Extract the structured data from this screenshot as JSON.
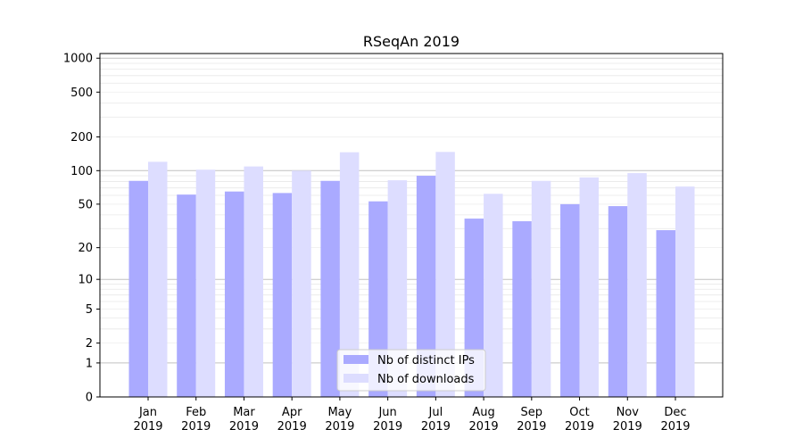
{
  "chart_data": {
    "type": "bar",
    "title": "RSeqAn 2019",
    "xlabel": "",
    "ylabel": "",
    "y_scale": "log(1+y)",
    "ylim": [
      0,
      1100
    ],
    "y_ticks": [
      0,
      1,
      2,
      5,
      10,
      20,
      50,
      100,
      200,
      500,
      1000
    ],
    "grid": "horizontal",
    "legend_position": "lower center",
    "categories": [
      "Jan\n2019",
      "Feb\n2019",
      "Mar\n2019",
      "Apr\n2019",
      "May\n2019",
      "Jun\n2019",
      "Jul\n2019",
      "Aug\n2019",
      "Sep\n2019",
      "Oct\n2019",
      "Nov\n2019",
      "Dec\n2019"
    ],
    "series": [
      {
        "name": "Nb of distinct IPs",
        "color": "#aaaaff",
        "values": [
          81,
          61,
          65,
          63,
          81,
          53,
          90,
          37,
          35,
          50,
          48,
          29
        ]
      },
      {
        "name": "Nb of downloads",
        "color": "#ddddff",
        "values": [
          120,
          102,
          109,
          100,
          146,
          82,
          147,
          62,
          81,
          87,
          95,
          72
        ]
      }
    ]
  }
}
